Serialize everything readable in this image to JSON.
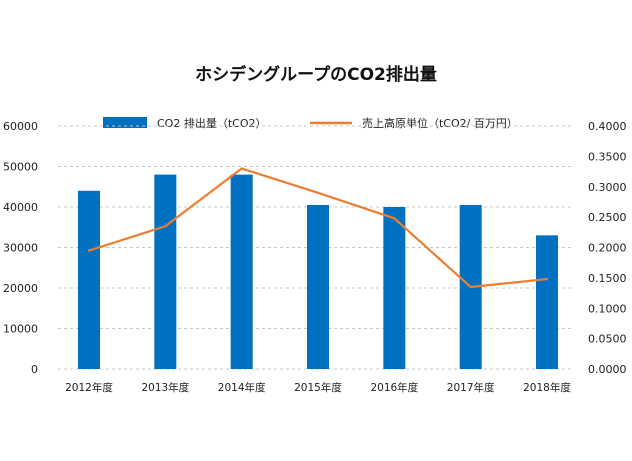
{
  "chart_data": {
    "type": "bar",
    "title": "ホシデングループのCO2排出量",
    "categories": [
      "2012年度",
      "2013年度",
      "2014年度",
      "2015年度",
      "2016年度",
      "2017年度",
      "2018年度"
    ],
    "series": [
      {
        "name": "CO2 排出量（tCO2）",
        "type": "bar",
        "axis": "left",
        "color": "#0070C0",
        "values": [
          44000,
          48000,
          48000,
          40500,
          40000,
          40500,
          33000
        ]
      },
      {
        "name": "売上高原単位（tCO2/ 百万円）",
        "type": "line",
        "axis": "right",
        "color": "#ED7D31",
        "values": [
          0.195,
          0.235,
          0.33,
          0.29,
          0.248,
          0.135,
          0.148
        ]
      }
    ],
    "y_left": {
      "min": 0,
      "max": 60000,
      "step": 10000,
      "tick_labels": [
        "0",
        "10000",
        "20000",
        "30000",
        "40000",
        "50000",
        "60000"
      ]
    },
    "y_right": {
      "min": 0,
      "max": 0.4,
      "step": 0.05,
      "tick_labels": [
        "0.0000",
        "0.0500",
        "0.1000",
        "0.1500",
        "0.2000",
        "0.2500",
        "0.3000",
        "0.3500",
        "0.4000"
      ]
    },
    "grid": {
      "horizontal": true,
      "style": "dashed",
      "color": "#c8c8c8"
    },
    "legend": {
      "position": "top"
    }
  }
}
